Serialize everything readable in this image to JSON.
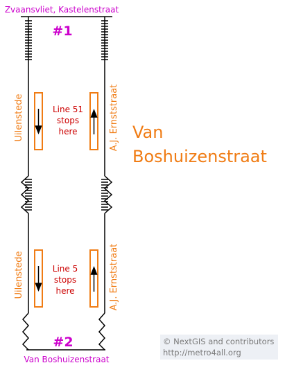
{
  "labels": {
    "top_street": "Zvaansvliet, Kastelenstraat",
    "bottom_street": "Van Boshuizenstraat",
    "station_line1": "Van",
    "station_line2": "Boshuizenstraat",
    "left_street_upper": "Uilenstede",
    "left_street_lower": "Uilenstede",
    "right_street_upper": "A.J. Ernststraat",
    "right_street_lower": "A.J. Ernststraat"
  },
  "markers": {
    "top": "#1",
    "bottom": "#2"
  },
  "stops": {
    "upper": [
      "Line 51",
      "stops",
      "here"
    ],
    "lower": [
      "Line 5",
      "stops",
      "here"
    ]
  },
  "attribution": {
    "line1": "© NextGIS and contributors",
    "line2": "http://metro4all.org"
  },
  "colors": {
    "road": "#000000",
    "marker": "#cc00cc",
    "street_label": "#f07c14",
    "stop_box": "#f07c14",
    "stop_text": "#cc0000",
    "attribution_bg": "#edf0f5",
    "attribution_text": "#7a7a7a"
  },
  "icons": {
    "stairs": "stairs-icon",
    "escalator": "zigzag-icon",
    "direction": "arrow-icon"
  }
}
